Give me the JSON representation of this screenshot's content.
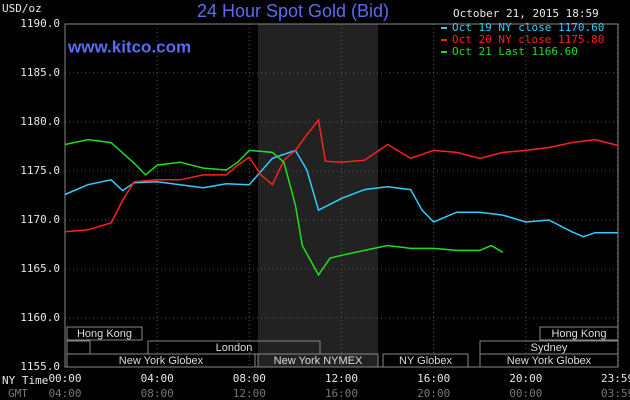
{
  "chart_data": {
    "type": "line",
    "title": "24 Hour Spot Gold (Bid)",
    "y_label": "USD/oz",
    "date": "October 21, 2015 18:59",
    "source": "www.kitco.com",
    "x_label": "NY Time",
    "x2_label": "GMT",
    "xlim": [
      0,
      24
    ],
    "xticks": [
      {
        "value": 0,
        "label": "00:00"
      },
      {
        "value": 4,
        "label": "04:00"
      },
      {
        "value": 8,
        "label": "08:00"
      },
      {
        "value": 12,
        "label": "12:00"
      },
      {
        "value": 16,
        "label": "16:00"
      },
      {
        "value": 20,
        "label": "20:00"
      },
      {
        "value": 23.98,
        "label": "23:59"
      }
    ],
    "gmt_ticks": [
      {
        "value": 0,
        "label": "04:00"
      },
      {
        "value": 4,
        "label": "08:00"
      },
      {
        "value": 8,
        "label": "12:00"
      },
      {
        "value": 12,
        "label": "16:00"
      },
      {
        "value": 16,
        "label": "20:00"
      },
      {
        "value": 20,
        "label": "00:00"
      },
      {
        "value": 23.98,
        "label": "03:59"
      }
    ],
    "ylim": [
      1155,
      1190
    ],
    "yticks": [
      {
        "value": 1155,
        "label": "1155.0"
      },
      {
        "value": 1160,
        "label": "1160.0"
      },
      {
        "value": 1165,
        "label": "1165.0"
      },
      {
        "value": 1170,
        "label": "1170.0"
      },
      {
        "value": 1175,
        "label": "1175.0"
      },
      {
        "value": 1180,
        "label": "1180.0"
      },
      {
        "value": 1185,
        "label": "1185.0"
      },
      {
        "value": 1190,
        "label": "1190.0"
      }
    ],
    "grid": true,
    "sessions": [
      "Hong Kong",
      "Hong Kong",
      "London",
      "Sydney",
      "New York Globex",
      "New York NYMEX",
      "NY Globex",
      "New York Globex"
    ],
    "series": [
      {
        "name": "Oct 19 NY close 1170.60",
        "color": "#33ccff",
        "x": [
          0,
          1,
          2,
          2.5,
          3,
          4,
          5,
          6,
          7,
          8,
          9,
          10,
          10.5,
          11,
          12,
          13,
          14,
          15,
          15.5,
          16,
          17,
          18,
          19,
          20,
          21,
          22,
          22.5,
          23,
          24
        ],
        "values": [
          1172.6,
          1173.6,
          1174.1,
          1173,
          1173.8,
          1173.9,
          1173.6,
          1173.3,
          1173.7,
          1173.6,
          1176.3,
          1177.1,
          1175.1,
          1171,
          1172.2,
          1173.1,
          1173.4,
          1173.1,
          1171,
          1169.8,
          1170.8,
          1170.8,
          1170.5,
          1169.8,
          1170,
          1168.8,
          1168.3,
          1168.7,
          1168.7
        ]
      },
      {
        "name": "Oct 20 NY close 1175.80",
        "color": "#ff2020",
        "x": [
          0,
          1,
          2,
          2.5,
          3,
          4,
          5,
          6,
          7,
          7.5,
          8,
          8.5,
          9,
          9.5,
          10,
          10.5,
          11,
          11.3,
          12,
          13,
          14,
          15,
          16,
          17,
          18,
          19,
          20,
          21,
          22,
          23,
          24
        ],
        "values": [
          1168.8,
          1169,
          1169.7,
          1172,
          1173.9,
          1174.1,
          1174.1,
          1174.6,
          1174.6,
          1175.6,
          1176.4,
          1174.6,
          1173.6,
          1176.1,
          1177.1,
          1178.7,
          1180.2,
          1176,
          1175.9,
          1176.1,
          1177.7,
          1176.3,
          1177.1,
          1176.9,
          1176.3,
          1176.9,
          1177.1,
          1177.4,
          1177.9,
          1178.2,
          1177.6
        ]
      },
      {
        "name": "Oct 21 Last 1166.60",
        "color": "#22dd22",
        "x": [
          0,
          1,
          2,
          3,
          3.5,
          4,
          5,
          6,
          7,
          7.5,
          8,
          9,
          9.5,
          10,
          10.3,
          11,
          11.5,
          12,
          13,
          14,
          15,
          16,
          17,
          18,
          18.5,
          19
        ],
        "values": [
          1177.7,
          1178.2,
          1177.9,
          1175.8,
          1174.6,
          1175.6,
          1175.9,
          1175.3,
          1175.1,
          1175.9,
          1177.1,
          1176.9,
          1175.9,
          1171.5,
          1167.4,
          1164.4,
          1166.1,
          1166.4,
          1166.9,
          1167.4,
          1167.1,
          1167.1,
          1166.9,
          1166.9,
          1167.4,
          1166.7
        ]
      }
    ]
  }
}
